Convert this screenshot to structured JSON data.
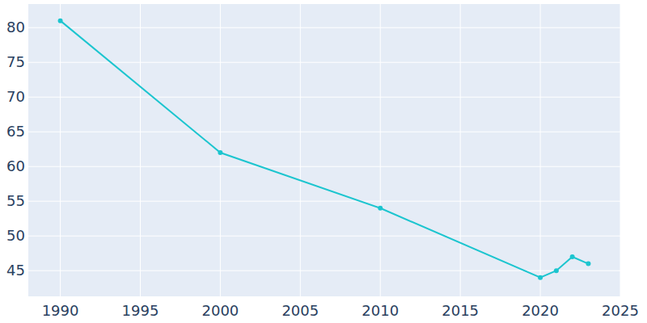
{
  "chart_data": {
    "type": "line",
    "x": [
      1990,
      2000,
      2010,
      2020,
      2021,
      2022,
      2023
    ],
    "values": [
      81,
      62,
      54,
      44,
      45,
      47,
      46
    ],
    "color": "#1cc5cf",
    "marker": "circle",
    "xlim": [
      1988,
      2025
    ],
    "xticks": [
      1990,
      1995,
      2000,
      2005,
      2010,
      2015,
      2020,
      2025
    ],
    "ylim": [
      41.3,
      83.4
    ],
    "yticks": [
      45,
      50,
      55,
      60,
      65,
      70,
      75,
      80
    ],
    "grid": true
  }
}
